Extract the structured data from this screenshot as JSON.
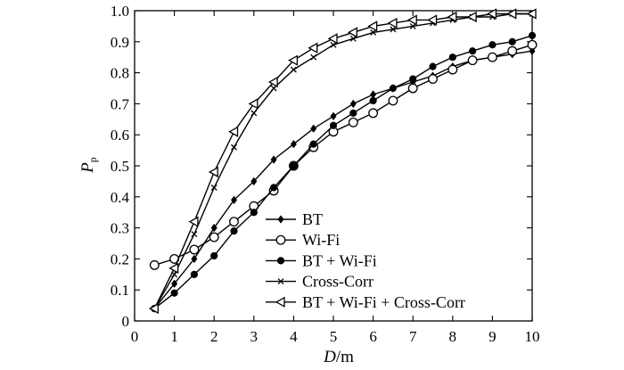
{
  "chart_data": {
    "type": "line",
    "xlabel_var": "D",
    "xlabel_unit": "/m",
    "ylabel_var": "P",
    "ylabel_sub": "p",
    "xlim": [
      0,
      10
    ],
    "ylim": [
      0,
      1.0
    ],
    "x_ticks": [
      "0",
      "1",
      "2",
      "3",
      "4",
      "5",
      "6",
      "7",
      "8",
      "9",
      "10"
    ],
    "y_ticks": [
      "0",
      "0.1",
      "0.2",
      "0.3",
      "0.4",
      "0.5",
      "0.6",
      "0.7",
      "0.8",
      "0.9",
      "1.0"
    ],
    "legend_position": "lower-right-inside",
    "series": [
      {
        "name": "BT",
        "marker": "diamond",
        "x": [
          0.5,
          1.0,
          1.5,
          2.0,
          2.5,
          3.0,
          3.5,
          4.0,
          4.5,
          5.0,
          5.5,
          6.0,
          6.5,
          7.0,
          7.5,
          8.0,
          8.5,
          9.0,
          9.5,
          10.0
        ],
        "y": [
          0.04,
          0.12,
          0.2,
          0.3,
          0.39,
          0.45,
          0.52,
          0.57,
          0.62,
          0.66,
          0.7,
          0.73,
          0.75,
          0.77,
          0.79,
          0.82,
          0.84,
          0.85,
          0.86,
          0.87
        ]
      },
      {
        "name": "Wi-Fi",
        "marker": "circle-open",
        "x": [
          0.5,
          1.0,
          1.5,
          2.0,
          2.5,
          3.0,
          3.5,
          4.0,
          4.5,
          5.0,
          5.5,
          6.0,
          6.5,
          7.0,
          7.5,
          8.0,
          8.5,
          9.0,
          9.5,
          10.0
        ],
        "y": [
          0.18,
          0.2,
          0.23,
          0.27,
          0.32,
          0.37,
          0.42,
          0.5,
          0.56,
          0.61,
          0.64,
          0.67,
          0.71,
          0.75,
          0.78,
          0.81,
          0.84,
          0.85,
          0.87,
          0.89
        ]
      },
      {
        "name": "BT + Wi-Fi",
        "marker": "circle-filled",
        "x": [
          0.5,
          1.0,
          1.5,
          2.0,
          2.5,
          3.0,
          3.5,
          4.0,
          4.5,
          5.0,
          5.5,
          6.0,
          6.5,
          7.0,
          7.5,
          8.0,
          8.5,
          9.0,
          9.5,
          10.0
        ],
        "y": [
          0.04,
          0.09,
          0.15,
          0.21,
          0.29,
          0.35,
          0.43,
          0.5,
          0.57,
          0.63,
          0.67,
          0.71,
          0.75,
          0.78,
          0.82,
          0.85,
          0.87,
          0.89,
          0.9,
          0.92
        ]
      },
      {
        "name": "Cross-Corr",
        "marker": "cross",
        "x": [
          0.5,
          1.0,
          1.5,
          2.0,
          2.5,
          3.0,
          3.5,
          4.0,
          4.5,
          5.0,
          5.5,
          6.0,
          6.5,
          7.0,
          7.5,
          8.0,
          8.5,
          9.0,
          9.5,
          10.0
        ],
        "y": [
          0.04,
          0.15,
          0.28,
          0.43,
          0.56,
          0.67,
          0.75,
          0.81,
          0.85,
          0.89,
          0.91,
          0.93,
          0.94,
          0.95,
          0.96,
          0.97,
          0.98,
          0.98,
          0.99,
          0.99
        ]
      },
      {
        "name": "BT + Wi-Fi + Cross-Corr",
        "marker": "triangle-left-open",
        "x": [
          0.5,
          1.0,
          1.5,
          2.0,
          2.5,
          3.0,
          3.5,
          4.0,
          4.5,
          5.0,
          5.5,
          6.0,
          6.5,
          7.0,
          7.5,
          8.0,
          8.5,
          9.0,
          9.5,
          10.0
        ],
        "y": [
          0.04,
          0.17,
          0.32,
          0.48,
          0.61,
          0.7,
          0.77,
          0.84,
          0.88,
          0.91,
          0.93,
          0.95,
          0.96,
          0.97,
          0.97,
          0.98,
          0.98,
          0.99,
          0.99,
          0.99
        ]
      }
    ]
  }
}
